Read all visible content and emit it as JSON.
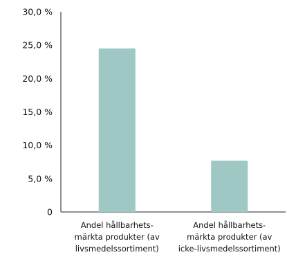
{
  "chart_data": {
    "type": "bar",
    "title": "",
    "xlabel": "",
    "ylabel": "",
    "categories": [
      [
        "Andel hållbarhets-",
        "märkta produkter (av",
        "livsmedelssortiment)"
      ],
      [
        "Andel hållbarhets-",
        "märkta produkter (av",
        "icke-livsmedelssortiment)"
      ]
    ],
    "values": [
      24.5,
      7.7
    ],
    "ylim": [
      0,
      30
    ],
    "yticks": [
      0,
      5,
      10,
      15,
      20,
      25,
      30
    ],
    "ytick_labels": [
      "0",
      "5,0 %",
      "10,0 %",
      "15,0 %",
      "20,0 %",
      "25,0 %",
      "30,0 %"
    ],
    "bar_color": "#9fc8c4",
    "grid": false,
    "legend": "none"
  }
}
